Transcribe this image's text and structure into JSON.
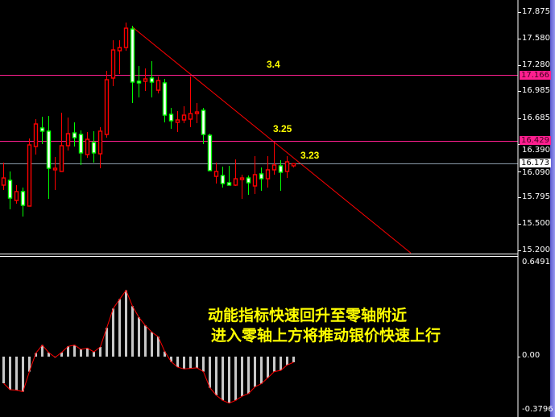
{
  "chart_data": [
    {
      "type": "candlestick",
      "price_axis": {
        "min": 15.2,
        "max": 17.875,
        "ticks": [
          "17.875",
          "17.580",
          "17.280",
          "16.985",
          "16.685",
          "16.390",
          "16.090",
          "15.795",
          "15.500",
          "15.200"
        ]
      },
      "up_color": "#ff0000",
      "down_color": "#00ff00",
      "down_fill": "#ffffff",
      "ohlc": [
        [
          15.932,
          16.185,
          15.878,
          16.013
        ],
        [
          15.986,
          16.086,
          15.661,
          15.787
        ],
        [
          15.76,
          15.932,
          15.724,
          15.86
        ],
        [
          15.86,
          15.905,
          15.58,
          15.706
        ],
        [
          15.697,
          16.456,
          15.697,
          16.384
        ],
        [
          16.366,
          16.673,
          16.275,
          16.619
        ],
        [
          16.574,
          16.7,
          16.393,
          16.538
        ],
        [
          16.538,
          16.709,
          15.778,
          16.122
        ],
        [
          16.104,
          16.248,
          15.878,
          16.122
        ],
        [
          16.086,
          16.745,
          16.086,
          16.375
        ],
        [
          16.375,
          16.691,
          16.321,
          16.51
        ],
        [
          16.519,
          16.637,
          16.366,
          16.465
        ],
        [
          16.501,
          16.547,
          16.158,
          16.294
        ],
        [
          16.275,
          16.528,
          16.239,
          16.447
        ],
        [
          16.411,
          16.538,
          16.185,
          16.294
        ],
        [
          16.284,
          16.583,
          16.122,
          16.538
        ],
        [
          16.501,
          17.215,
          16.465,
          17.116
        ],
        [
          17.134,
          17.559,
          17.044,
          17.45
        ],
        [
          17.441,
          17.559,
          17.179,
          17.477
        ],
        [
          17.477,
          17.758,
          17.441,
          17.694
        ],
        [
          17.685,
          17.721,
          16.854,
          17.089
        ],
        [
          17.098,
          17.27,
          16.917,
          17.08
        ],
        [
          17.098,
          17.242,
          16.989,
          17.125
        ],
        [
          17.134,
          17.324,
          16.917,
          17.089
        ],
        [
          16.998,
          17.152,
          16.962,
          17.107
        ],
        [
          17.08,
          17.125,
          16.637,
          16.718
        ],
        [
          16.727,
          16.8,
          16.565,
          16.655
        ],
        [
          16.637,
          16.763,
          16.528,
          16.664
        ],
        [
          16.664,
          16.818,
          16.628,
          16.718
        ],
        [
          16.673,
          17.152,
          16.583,
          16.736
        ],
        [
          16.736,
          16.854,
          16.628,
          16.754
        ],
        [
          16.772,
          16.8,
          16.393,
          16.501
        ],
        [
          16.492,
          16.51,
          16.095,
          16.095
        ],
        [
          16.031,
          16.185,
          15.95,
          16.086
        ],
        [
          16.04,
          16.14,
          15.905,
          15.95
        ],
        [
          15.959,
          16.149,
          15.932,
          15.932
        ],
        [
          15.932,
          16.221,
          15.923,
          16.004
        ],
        [
          15.995,
          16.05,
          15.778,
          16.013
        ],
        [
          16.013,
          16.04,
          15.824,
          15.959
        ],
        [
          15.923,
          16.257,
          15.833,
          16.05
        ],
        [
          16.059,
          16.131,
          15.869,
          16.004
        ],
        [
          16.004,
          16.257,
          15.905,
          16.104
        ],
        [
          16.104,
          16.42,
          16.05,
          16.158
        ],
        [
          16.149,
          16.212,
          15.869,
          16.077
        ],
        [
          16.086,
          16.257,
          16.013,
          16.194
        ],
        [
          16.149,
          16.167,
          16.131,
          16.173
        ]
      ],
      "horizontal_lines": [
        {
          "price": "17.166",
          "color": "#ff1f8f",
          "label": "3.4"
        },
        {
          "price": "16.429",
          "color": "#ff1f8f",
          "label": "3.25"
        },
        {
          "price": "16.173",
          "color": "#8a9aa8",
          "label": "3.23",
          "box_color": "#ffffff"
        }
      ],
      "trendline": {
        "color": "#ff0000",
        "from": {
          "bar": 20,
          "price": 17.71
        },
        "to": {
          "bar": 63.25,
          "price": 15.17
        }
      }
    },
    {
      "type": "bar",
      "name_shown": "",
      "axis": {
        "max_label": "0.6491",
        "zero_label": "0.00",
        "min_label": "-0.3796",
        "min": -0.3796,
        "max": 0.6491
      },
      "bar_color": "#c8c8c8",
      "line_color": "#ff0000",
      "values": [
        -0.19,
        -0.236,
        -0.24,
        -0.25,
        -0.107,
        0.025,
        0.082,
        0.029,
        -0.005,
        0.03,
        0.073,
        0.082,
        0.052,
        0.061,
        0.034,
        0.069,
        0.205,
        0.343,
        0.41,
        0.473,
        0.36,
        0.28,
        0.222,
        0.175,
        0.142,
        0.036,
        -0.036,
        -0.075,
        -0.088,
        -0.084,
        -0.08,
        -0.107,
        -0.222,
        -0.276,
        -0.312,
        -0.332,
        -0.312,
        -0.283,
        -0.264,
        -0.216,
        -0.193,
        -0.151,
        -0.107,
        -0.098,
        -0.06,
        -0.04
      ]
    }
  ],
  "annotations": {
    "line1": "动能指标快速回升至零轴附近",
    "line2": "进入零轴上方将推动银价快速上行"
  }
}
